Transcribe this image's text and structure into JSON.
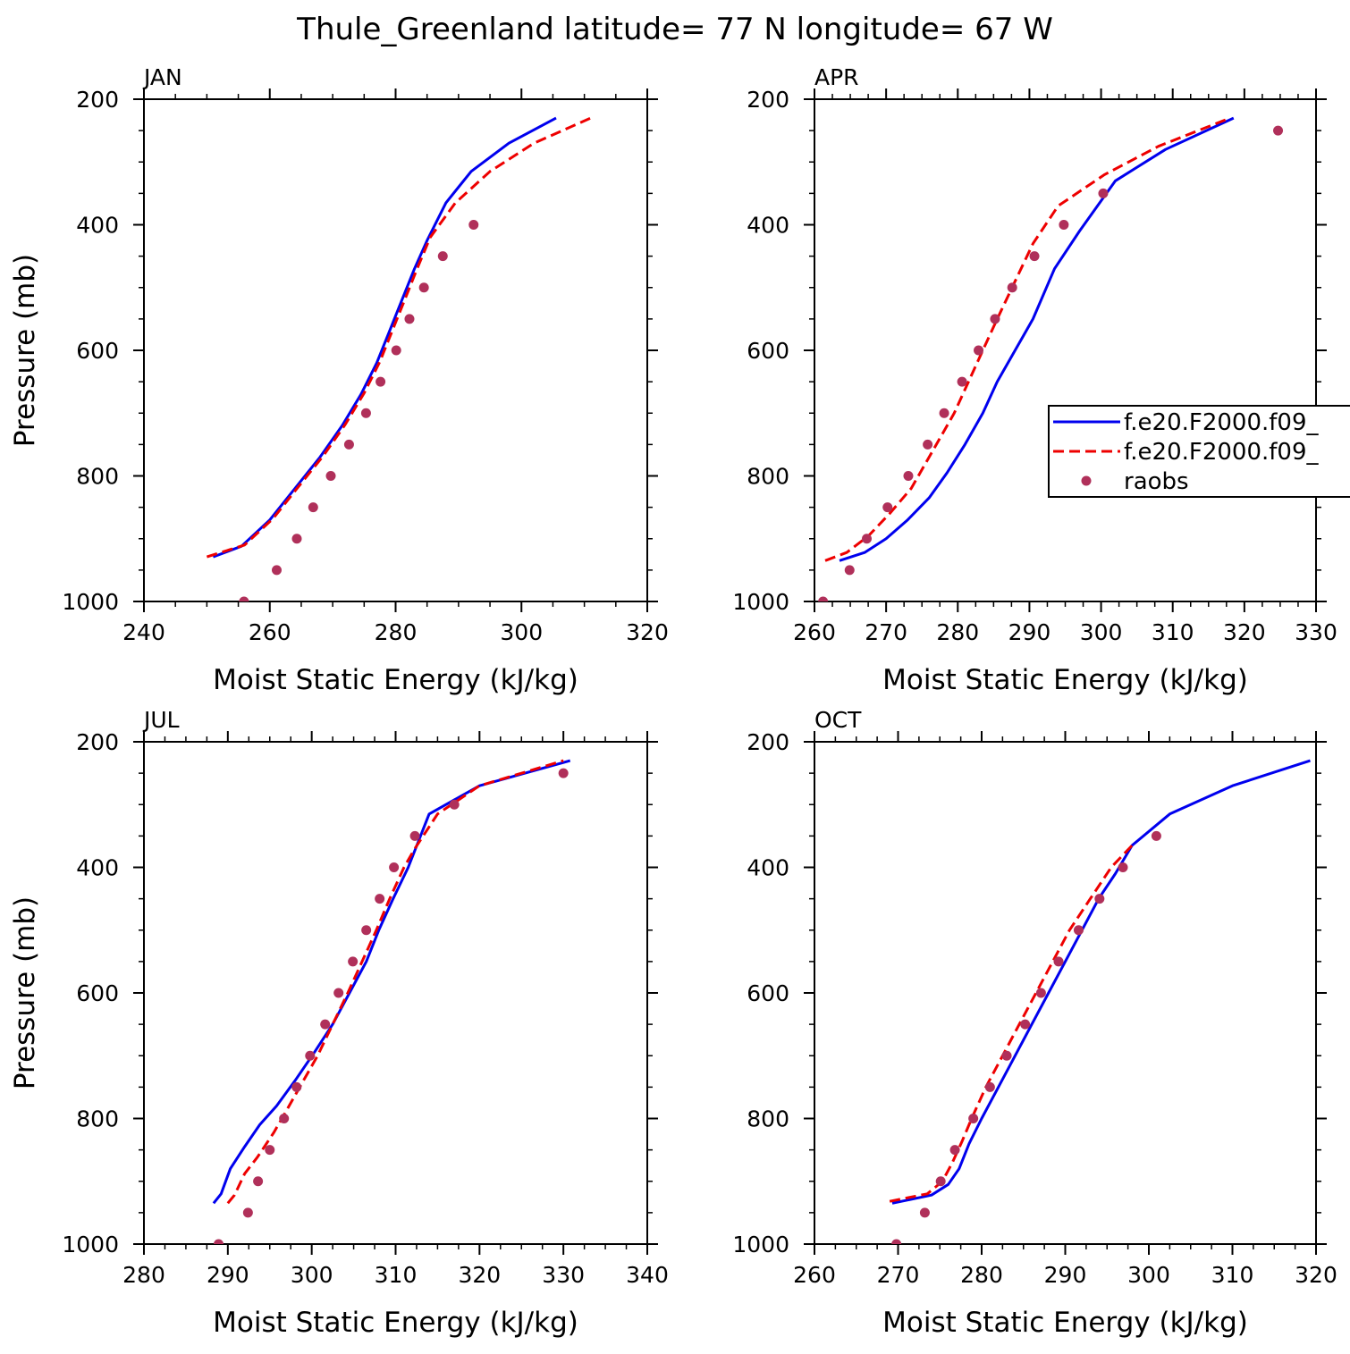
{
  "figure": {
    "title": "Thule_Greenland  latitude= 77 N longitude= 67 W"
  },
  "colors": {
    "model_1": "#0000ee",
    "model_2": "#ee0000",
    "raobs": "#b0305a"
  },
  "legend": {
    "panel": "APR",
    "placement": "right",
    "entries": [
      "f.e20.F2000.f09_",
      "f.e20.F2000.f09_",
      "raobs"
    ]
  },
  "chart_data": [
    {
      "type": "line",
      "title": "JAN",
      "xlabel": "Moist Static Energy (kJ/kg)",
      "ylabel": "Pressure (mb)",
      "xlim": [
        240,
        320
      ],
      "ylim": [
        1000,
        200
      ],
      "xticks": [
        240,
        260,
        280,
        300,
        320
      ],
      "yticks": [
        200,
        400,
        600,
        800,
        1000
      ],
      "series": [
        {
          "name": "f.e20.F2000.f09_",
          "style": "solid",
          "x": [
            251.0,
            255.5,
            260.0,
            264.0,
            268.0,
            271.5,
            274.5,
            277.0,
            279.0,
            281.0,
            283.0,
            285.0,
            288.0,
            292.0,
            298.0,
            305.5
          ],
          "y": [
            929,
            912,
            870,
            820,
            770,
            720,
            670,
            620,
            570,
            520,
            470,
            425,
            365,
            315,
            270,
            230
          ]
        },
        {
          "name": "f.e20.F2000.f09_",
          "style": "dashed",
          "x": [
            250.0,
            256.0,
            260.5,
            264.5,
            268.5,
            272.0,
            275.0,
            277.5,
            279.5,
            281.5,
            283.5,
            285.5,
            289.5,
            295.0,
            302.0,
            311.0
          ],
          "y": [
            929,
            910,
            868,
            818,
            768,
            718,
            668,
            618,
            568,
            518,
            468,
            420,
            365,
            315,
            270,
            230
          ]
        },
        {
          "name": "raobs",
          "style": "markers",
          "x": [
            255.9,
            261.1,
            264.3,
            266.9,
            269.7,
            272.6,
            275.3,
            277.6,
            280.1,
            282.2,
            284.5,
            287.5,
            292.4
          ],
          "y": [
            1000,
            950,
            900,
            850,
            800,
            750,
            700,
            650,
            600,
            550,
            500,
            450,
            400
          ]
        }
      ]
    },
    {
      "type": "line",
      "title": "APR",
      "xlabel": "Moist Static Energy (kJ/kg)",
      "ylabel": "",
      "xlim": [
        260,
        330
      ],
      "ylim": [
        1000,
        200
      ],
      "xticks": [
        260,
        270,
        280,
        290,
        300,
        310,
        320,
        330
      ],
      "yticks": [
        200,
        400,
        600,
        800,
        1000
      ],
      "series": [
        {
          "name": "f.e20.F2000.f09_",
          "style": "solid",
          "x": [
            263.5,
            267.0,
            270.0,
            273.0,
            276.0,
            278.5,
            281.0,
            283.5,
            285.5,
            288.0,
            290.5,
            293.5,
            297.0,
            302.0,
            309.0,
            318.5
          ],
          "y": [
            935,
            922,
            900,
            870,
            835,
            795,
            750,
            700,
            650,
            600,
            550,
            470,
            410,
            330,
            280,
            230
          ]
        },
        {
          "name": "f.e20.F2000.f09_",
          "style": "dashed",
          "x": [
            261.5,
            264.5,
            267.5,
            270.5,
            273.5,
            275.5,
            277.5,
            279.5,
            281.5,
            283.5,
            285.5,
            288.0,
            290.5,
            294.0,
            300.5,
            308.0,
            318.0
          ],
          "y": [
            935,
            922,
            896,
            860,
            820,
            780,
            740,
            700,
            650,
            600,
            550,
            490,
            430,
            370,
            320,
            275,
            230
          ]
        },
        {
          "name": "raobs",
          "style": "markers",
          "x": [
            261.2,
            264.9,
            267.3,
            270.2,
            273.1,
            275.8,
            278.1,
            280.6,
            282.9,
            285.2,
            287.6,
            290.7,
            294.8,
            300.3,
            324.7
          ],
          "y": [
            1000,
            950,
            900,
            850,
            800,
            750,
            700,
            650,
            600,
            550,
            500,
            450,
            400,
            350,
            250
          ]
        }
      ]
    },
    {
      "type": "line",
      "title": "JUL",
      "xlabel": "Moist Static Energy (kJ/kg)",
      "ylabel": "Pressure (mb)",
      "xlim": [
        280,
        340
      ],
      "ylim": [
        1000,
        200
      ],
      "xticks": [
        280,
        290,
        300,
        310,
        320,
        330,
        340
      ],
      "yticks": [
        200,
        400,
        600,
        800,
        1000
      ],
      "series": [
        {
          "name": "f.e20.F2000.f09_",
          "style": "solid",
          "x": [
            288.3,
            289.2,
            290.3,
            292.0,
            293.8,
            295.8,
            298.0,
            300.3,
            302.5,
            304.5,
            306.5,
            308.0,
            309.7,
            311.5,
            314.0,
            320.0,
            330.8
          ],
          "y": [
            935,
            920,
            880,
            845,
            810,
            780,
            740,
            695,
            650,
            600,
            550,
            500,
            450,
            400,
            315,
            270,
            230
          ]
        },
        {
          "name": "f.e20.F2000.f09_",
          "style": "dashed",
          "x": [
            290.0,
            290.8,
            292.0,
            293.5,
            295.5,
            297.3,
            299.0,
            300.7,
            302.5,
            304.3,
            306.0,
            307.7,
            309.3,
            311.0,
            312.3,
            315.0,
            320.0,
            330.0
          ],
          "y": [
            935,
            922,
            888,
            862,
            822,
            780,
            740,
            700,
            650,
            600,
            550,
            500,
            450,
            400,
            370,
            315,
            270,
            230
          ]
        },
        {
          "name": "raobs",
          "style": "markers",
          "x": [
            288.9,
            292.4,
            293.6,
            295.0,
            296.7,
            298.2,
            299.8,
            301.6,
            303.2,
            304.9,
            306.5,
            308.1,
            309.8,
            312.3,
            317.0,
            330.0
          ],
          "y": [
            1000,
            950,
            900,
            850,
            800,
            750,
            700,
            650,
            600,
            550,
            500,
            450,
            400,
            350,
            300,
            250
          ]
        }
      ]
    },
    {
      "type": "line",
      "title": "OCT",
      "xlabel": "Moist Static Energy (kJ/kg)",
      "ylabel": "",
      "xlim": [
        260,
        320
      ],
      "ylim": [
        1000,
        200
      ],
      "xticks": [
        260,
        270,
        280,
        290,
        300,
        310,
        320
      ],
      "yticks": [
        200,
        400,
        600,
        800,
        1000
      ],
      "series": [
        {
          "name": "f.e20.F2000.f09_",
          "style": "solid",
          "x": [
            269.3,
            274.0,
            276.0,
            277.3,
            278.5,
            280.0,
            282.0,
            284.0,
            286.0,
            288.0,
            290.0,
            292.0,
            294.0,
            296.0,
            298.0,
            302.5,
            310.0,
            319.3
          ],
          "y": [
            935,
            922,
            905,
            880,
            840,
            800,
            750,
            700,
            650,
            600,
            550,
            500,
            450,
            410,
            365,
            315,
            270,
            230
          ]
        },
        {
          "name": "f.e20.F2000.f09_",
          "style": "dashed",
          "x": [
            269.0,
            273.5,
            275.3,
            276.5,
            277.7,
            278.8,
            280.5,
            282.5,
            284.5,
            286.5,
            288.5,
            290.5,
            293.0,
            295.5,
            298.0
          ],
          "y": [
            932,
            920,
            900,
            870,
            835,
            800,
            750,
            700,
            650,
            600,
            550,
            500,
            450,
            400,
            365
          ]
        },
        {
          "name": "raobs",
          "style": "markers",
          "x": [
            269.8,
            273.2,
            275.1,
            276.8,
            279.0,
            281.0,
            283.0,
            285.2,
            287.1,
            289.2,
            291.6,
            294.1,
            296.9,
            300.9
          ],
          "y": [
            1000,
            950,
            900,
            850,
            800,
            750,
            700,
            650,
            600,
            550,
            500,
            450,
            400,
            350
          ]
        }
      ]
    }
  ]
}
